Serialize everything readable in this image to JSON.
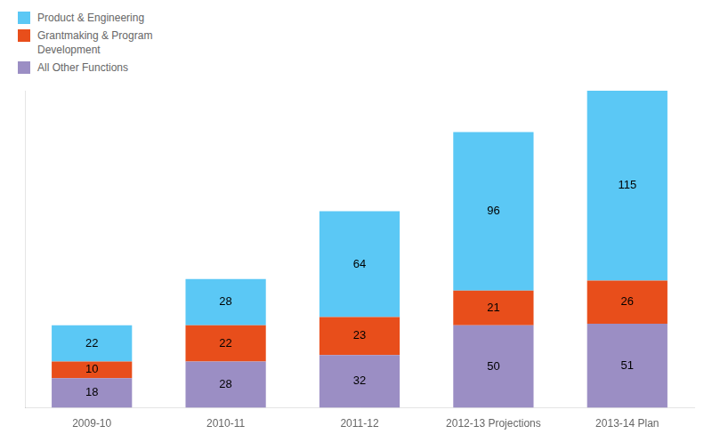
{
  "chart_data": {
    "type": "bar",
    "categories": [
      "2009-10",
      "2010-11",
      "2011-12",
      "2012-13 Projections",
      "2013-14 Plan"
    ],
    "series": [
      {
        "name": "All Other Functions",
        "color": "#9b8ec4",
        "values": [
          18,
          28,
          32,
          50,
          51
        ]
      },
      {
        "name": "Grantmaking & Program\nDevelopment",
        "color": "#e84e1b",
        "values": [
          10,
          22,
          23,
          21,
          26
        ]
      },
      {
        "name": "Product & Engineering",
        "color": "#5bc8f5",
        "values": [
          22,
          28,
          64,
          96,
          115
        ]
      }
    ],
    "stacked": true,
    "ylim": [
      0,
      192
    ],
    "data_labels": true,
    "tick_labels": "x",
    "grid": false,
    "legend": "upper left"
  }
}
